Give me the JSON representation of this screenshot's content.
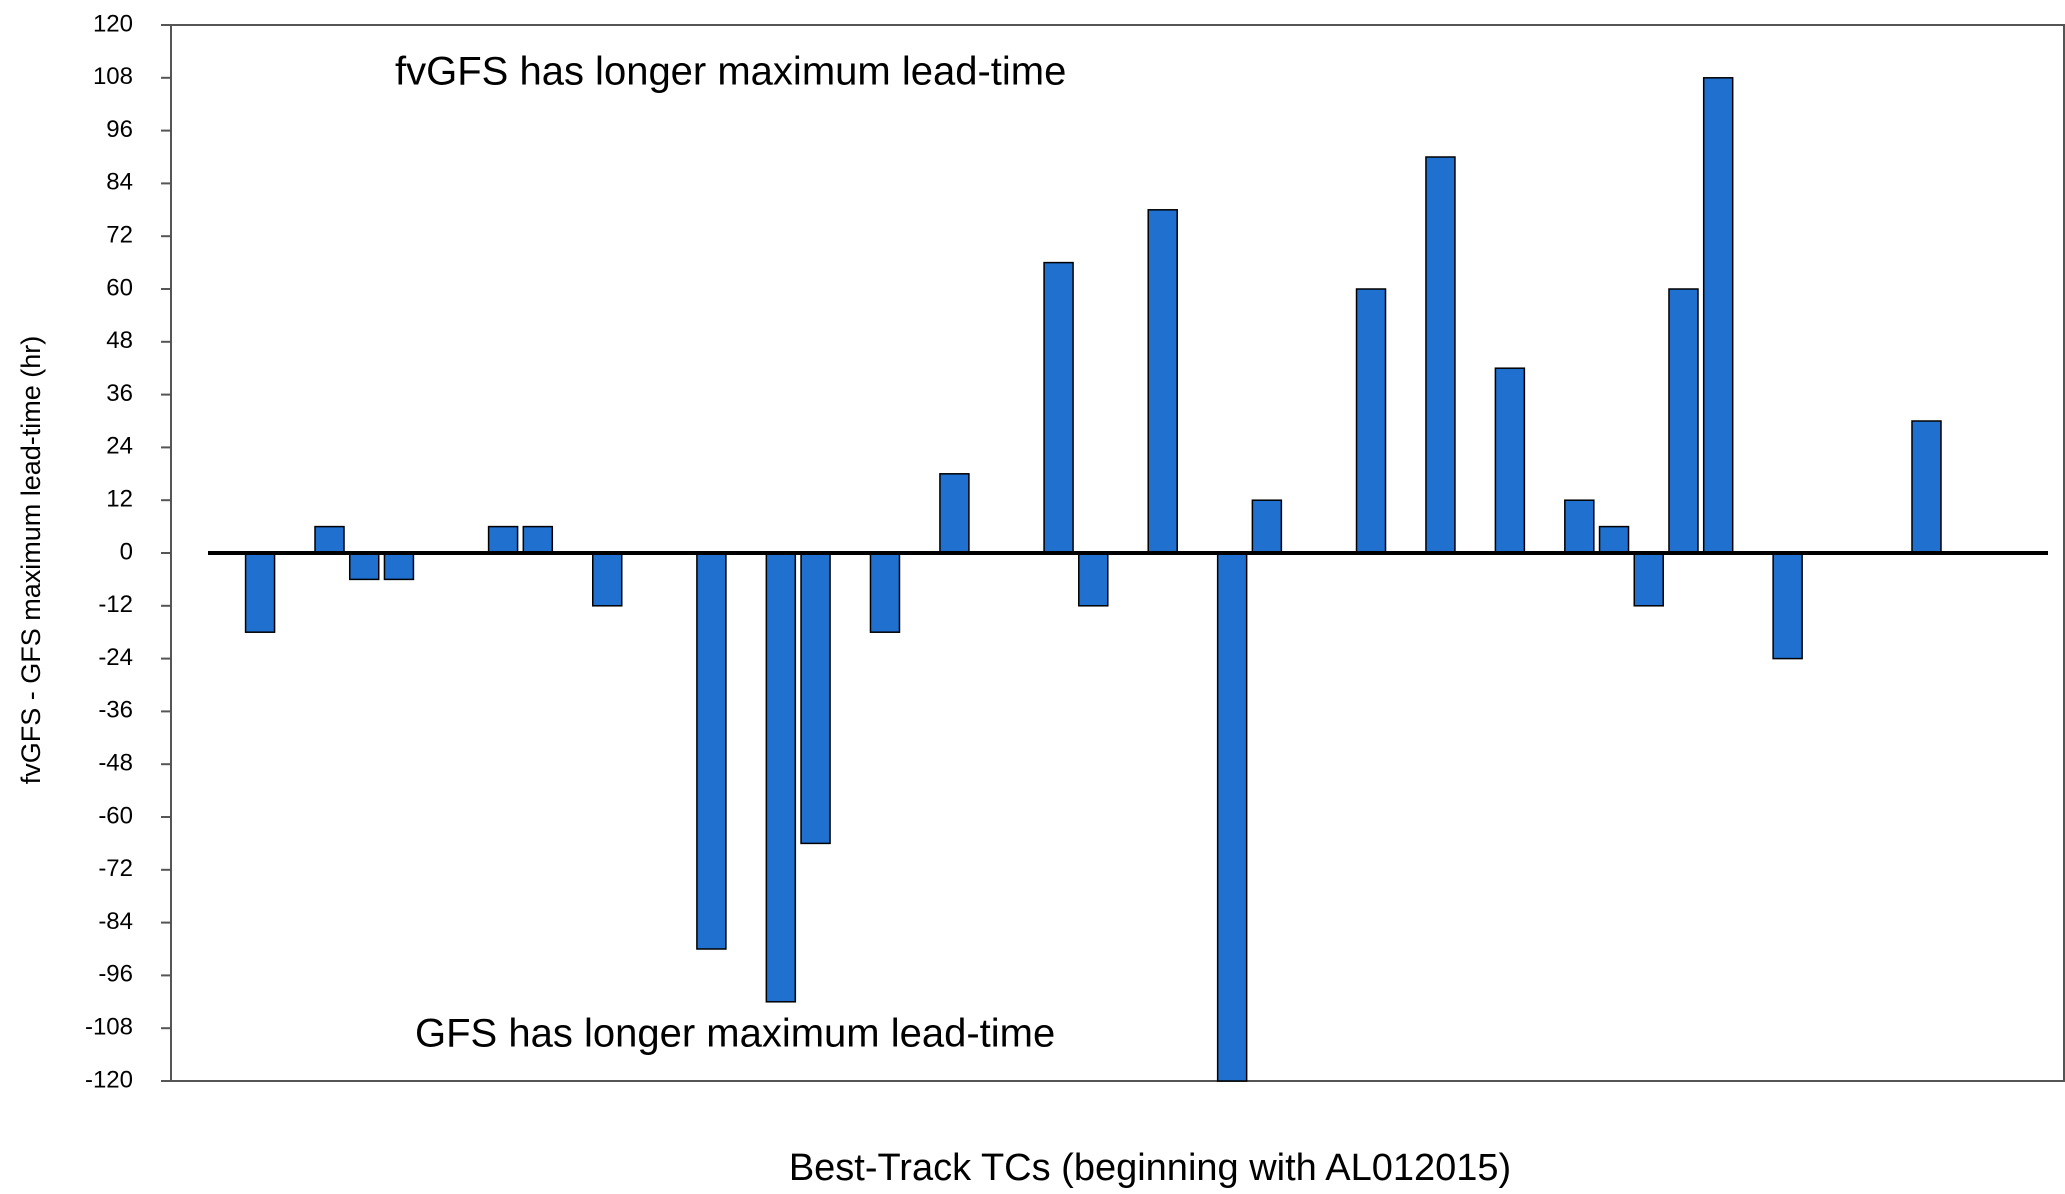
{
  "chart_data": {
    "type": "bar",
    "x_label": "Best-Track TCs (beginning with AL012015)",
    "y_label": "fvGFS - GFS maximum lead-time (hr)",
    "annotations": [
      "fvGFS has longer maximum lead-time",
      "GFS has longer maximum lead-time"
    ],
    "categories": [
      null,
      null,
      null,
      null,
      null,
      null,
      null,
      null,
      null,
      null,
      null,
      null,
      null,
      null,
      null,
      null,
      null,
      null,
      null,
      null,
      null,
      null,
      null,
      null,
      null,
      null,
      null,
      null,
      null,
      null,
      null,
      null,
      null,
      null,
      null,
      null,
      null,
      null,
      null,
      null,
      null,
      null,
      null,
      null,
      null,
      null,
      null,
      null,
      null,
      null,
      null,
      null,
      null
    ],
    "values": [
      0,
      -18,
      0,
      6,
      -6,
      -6,
      0,
      0,
      6,
      6,
      0,
      -12,
      0,
      0,
      -90,
      0,
      -102,
      -66,
      0,
      -18,
      0,
      18,
      0,
      0,
      66,
      -12,
      0,
      78,
      0,
      -120,
      12,
      0,
      0,
      60,
      0,
      90,
      0,
      42,
      0,
      12,
      6,
      -12,
      60,
      108,
      0,
      -24,
      0,
      0,
      0,
      30,
      0,
      0,
      0
    ],
    "color": "#1f70cf",
    "ylim": [
      -120,
      120
    ],
    "yticks": [
      -120,
      -108,
      -96,
      -84,
      -72,
      -60,
      -48,
      -36,
      -24,
      -12,
      0,
      12,
      24,
      36,
      48,
      60,
      72,
      84,
      96,
      108,
      120
    ],
    "grid": false
  }
}
